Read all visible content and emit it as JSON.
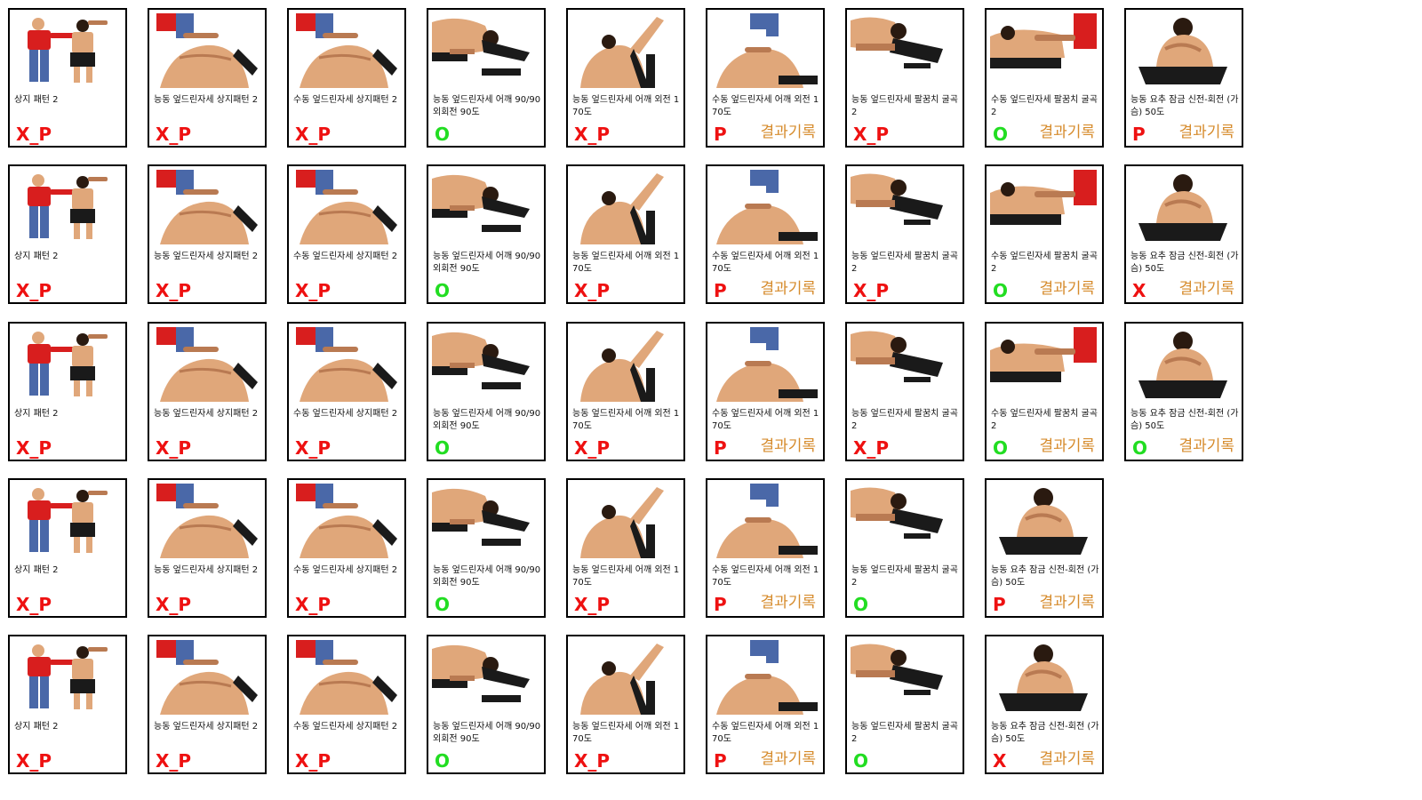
{
  "colors": {
    "x_p": "#ee1111",
    "p": "#ee1111",
    "x": "#ee1111",
    "o": "#22dd22",
    "record": "#d68b2c"
  },
  "rows": [
    [
      {
        "caption": "상지 패턴 2",
        "result": "X_P",
        "record": ""
      },
      {
        "caption": "능동 엎드린자세 상지패턴 2",
        "result": "X_P",
        "record": ""
      },
      {
        "caption": "수동 엎드린자세 상지패턴 2",
        "result": "X_P",
        "record": ""
      },
      {
        "caption": "능동 엎드린자세 어깨 90/90 외회전 90도",
        "result": "O",
        "record": ""
      },
      {
        "caption": "능동 엎드린자세 어깨 외전 170도",
        "result": "X_P",
        "record": ""
      },
      {
        "caption": "수동 엎드린자세 어깨 외전 170도",
        "result": "P",
        "record": "결과기록"
      },
      {
        "caption": "능동 엎드린자세 팔꿈치 굴곡2",
        "result": "X_P",
        "record": ""
      },
      {
        "caption": "수동 엎드린자세 팔꿈치 굴곡2",
        "result": "O",
        "record": "결과기록"
      },
      {
        "caption": "능동 요추 잠금 신전-회전 (가슴) 50도",
        "result": "P",
        "record": "결과기록"
      }
    ],
    [
      {
        "caption": "상지 패턴 2",
        "result": "X_P",
        "record": ""
      },
      {
        "caption": "능동 엎드린자세 상지패턴 2",
        "result": "X_P",
        "record": ""
      },
      {
        "caption": "수동 엎드린자세 상지패턴 2",
        "result": "X_P",
        "record": ""
      },
      {
        "caption": "능동 엎드린자세 어깨 90/90 외회전 90도",
        "result": "O",
        "record": ""
      },
      {
        "caption": "능동 엎드린자세 어깨 외전 170도",
        "result": "X_P",
        "record": ""
      },
      {
        "caption": "수동 엎드린자세 어깨 외전 170도",
        "result": "P",
        "record": "결과기록"
      },
      {
        "caption": "능동 엎드린자세 팔꿈치 굴곡2",
        "result": "X_P",
        "record": ""
      },
      {
        "caption": "수동 엎드린자세 팔꿈치 굴곡2",
        "result": "O",
        "record": "결과기록"
      },
      {
        "caption": "능동 요추 잠금 신전-회전 (가슴) 50도",
        "result": "X",
        "record": "결과기록"
      }
    ],
    [
      {
        "caption": "상지 패턴 2",
        "result": "X_P",
        "record": ""
      },
      {
        "caption": "능동 엎드린자세 상지패턴 2",
        "result": "X_P",
        "record": ""
      },
      {
        "caption": "수동 엎드린자세 상지패턴 2",
        "result": "X_P",
        "record": ""
      },
      {
        "caption": "능동 엎드린자세 어깨 90/90 외회전 90도",
        "result": "O",
        "record": ""
      },
      {
        "caption": "능동 엎드린자세 어깨 외전 170도",
        "result": "X_P",
        "record": ""
      },
      {
        "caption": "수동 엎드린자세 어깨 외전 170도",
        "result": "P",
        "record": "결과기록"
      },
      {
        "caption": "능동 엎드린자세 팔꿈치 굴곡2",
        "result": "X_P",
        "record": ""
      },
      {
        "caption": "수동 엎드린자세 팔꿈치 굴곡2",
        "result": "O",
        "record": "결과기록"
      },
      {
        "caption": "능동 요추 잠금 신전-회전 (가슴) 50도",
        "result": "O",
        "record": "결과기록"
      }
    ],
    [
      {
        "caption": "상지 패턴 2",
        "result": "X_P",
        "record": ""
      },
      {
        "caption": "능동 엎드린자세 상지패턴 2",
        "result": "X_P",
        "record": ""
      },
      {
        "caption": "수동 엎드린자세 상지패턴 2",
        "result": "X_P",
        "record": ""
      },
      {
        "caption": "능동 엎드린자세 어깨 90/90 외회전 90도",
        "result": "O",
        "record": ""
      },
      {
        "caption": "능동 엎드린자세 어깨 외전 170도",
        "result": "X_P",
        "record": ""
      },
      {
        "caption": "수동 엎드린자세 어깨 외전 170도",
        "result": "P",
        "record": "결과기록"
      },
      {
        "caption": "능동 엎드린자세 팔꿈치 굴곡2",
        "result": "O",
        "record": ""
      },
      {
        "caption": "능동 요추 잠금 신전-회전 (가슴) 50도",
        "result": "P",
        "record": "결과기록"
      }
    ],
    [
      {
        "caption": "상지 패턴 2",
        "result": "X_P",
        "record": ""
      },
      {
        "caption": "능동 엎드린자세 상지패턴 2",
        "result": "X_P",
        "record": ""
      },
      {
        "caption": "수동 엎드린자세 상지패턴 2",
        "result": "X_P",
        "record": ""
      },
      {
        "caption": "능동 엎드린자세 어깨 90/90 외회전 90도",
        "result": "O",
        "record": ""
      },
      {
        "caption": "능동 엎드린자세 어깨 외전 170도",
        "result": "X_P",
        "record": ""
      },
      {
        "caption": "수동 엎드린자세 어깨 외전 170도",
        "result": "P",
        "record": "결과기록"
      },
      {
        "caption": "능동 엎드린자세 팔꿈치 굴곡2",
        "result": "O",
        "record": ""
      },
      {
        "caption": "능동 요추 잠금 신전-회전 (가슴) 50도",
        "result": "X",
        "record": "결과기록"
      }
    ]
  ]
}
